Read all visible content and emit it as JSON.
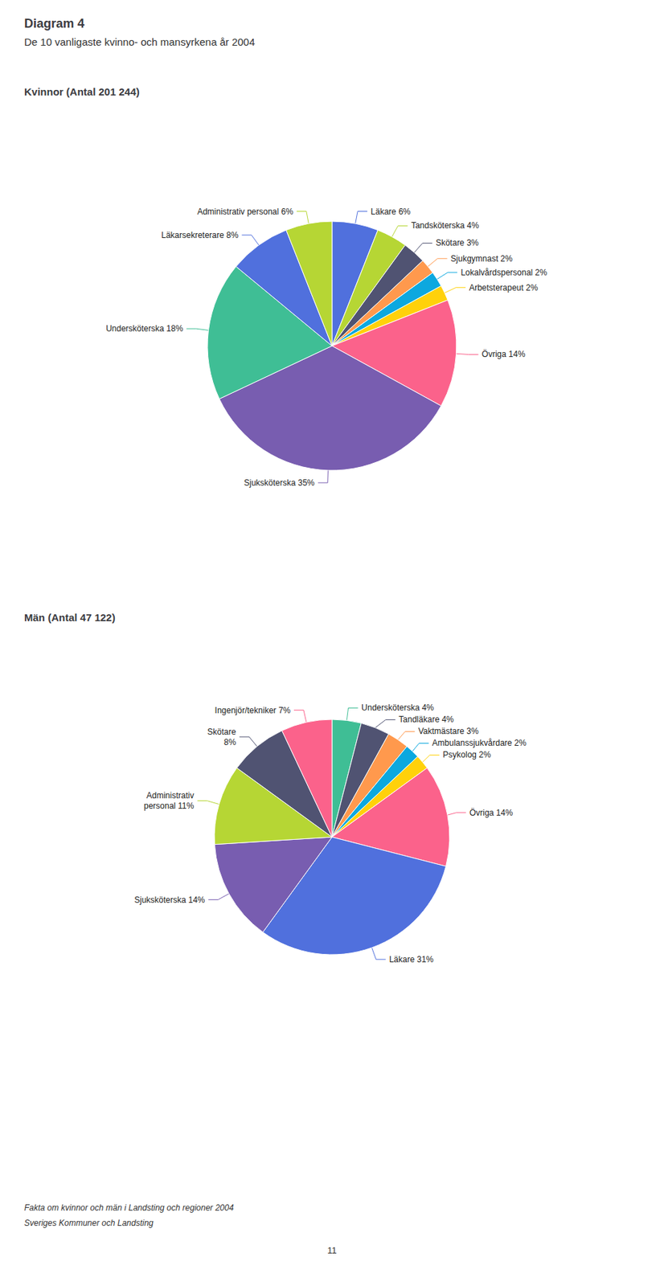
{
  "title": "Diagram 4",
  "subtitle": "De 10 vanligaste kvinno- och mansyrkena år 2004",
  "annotations": [
    "Fakta om kvinnor och män i Landsting och regioner 2004",
    "Sveriges Kommuner och Landsting",
    "11"
  ],
  "chart_data": [
    {
      "type": "pie",
      "title": "Kvinnor (Antal 201 244)",
      "categories": [
        "Läkare",
        "Tandsköterska",
        "Skötare",
        "Sjukgymnast",
        "Lokalvårdspersonal",
        "Arbetsterapeut",
        "Övriga",
        "Sjuksköterska",
        "Undersköterska",
        "Läkarsekreterare",
        "Administrativ personal"
      ],
      "values": [
        6,
        4,
        3,
        2,
        2,
        2,
        14,
        35,
        18,
        8,
        6
      ],
      "value_labels": [
        "Läkare 6%",
        "Tandsköterska 4%",
        "Skötare 3%",
        "Sjukgymnast 2%",
        "Lokalvårdspersonal 2%",
        "Arbetsterapeut 2%",
        "Övriga 14%",
        "Sjuksköterska 35%",
        "Undersköterska 18%",
        "Läkarsekreterare 8%",
        "Administrativ personal 6%"
      ],
      "data_labels": true
    },
    {
      "type": "pie",
      "title": "Män (Antal 47 122)",
      "categories": [
        "Undersköterska",
        "Tandläkare",
        "Vaktmästare",
        "Ambulanssjukvårdare",
        "Psykolog",
        "Övriga",
        "Läkare",
        "Sjuksköterska",
        "Administrativ personal",
        "Skötare",
        "Ingenjör/tekniker"
      ],
      "values": [
        4,
        4,
        3,
        2,
        2,
        14,
        31,
        14,
        11,
        8,
        7
      ],
      "value_labels": [
        "Undersköterska 4%",
        "Tandläkare 4%",
        "Vaktmästare 3%",
        "Ambulanssjukvårdare 2%",
        "Psykolog 2%",
        "Övriga 14%",
        "Läkare 31%",
        "Sjuksköterska 14%",
        "Administrativ\npersonal 11%",
        "Skötare\n8%",
        "Ingenjör/tekniker 7%"
      ],
      "data_labels": true
    }
  ]
}
